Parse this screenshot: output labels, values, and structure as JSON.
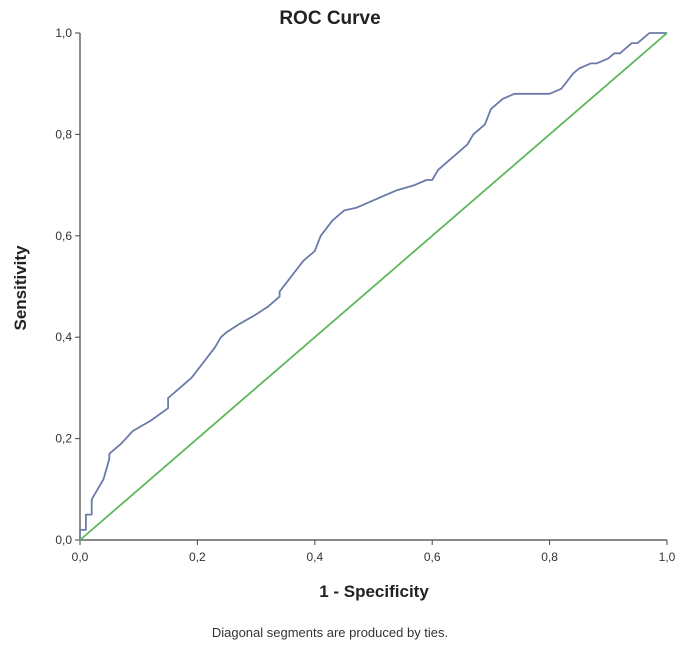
{
  "chart_data": {
    "type": "line",
    "title": "ROC Curve",
    "xlabel": "1 - Specificity",
    "ylabel": "Sensitivity",
    "footnote": "Diagonal segments are produced by ties.",
    "xlim": [
      0,
      1
    ],
    "ylim": [
      0,
      1
    ],
    "x_ticks": [
      "0,0",
      "0,2",
      "0,4",
      "0,6",
      "0,8",
      "1,0"
    ],
    "y_ticks": [
      "0,0",
      "0,2",
      "0,4",
      "0,6",
      "0,8",
      "1,0"
    ],
    "grid": false,
    "legend": "none",
    "colors": {
      "roc": "#6b7aa8",
      "reference": "#5cb85c",
      "axis": "#444444"
    },
    "series": [
      {
        "role": "roc",
        "x": [
          0.0,
          0.0,
          0.01,
          0.01,
          0.02,
          0.02,
          0.03,
          0.04,
          0.05,
          0.05,
          0.07,
          0.09,
          0.12,
          0.15,
          0.15,
          0.17,
          0.19,
          0.21,
          0.23,
          0.24,
          0.25,
          0.27,
          0.3,
          0.32,
          0.34,
          0.34,
          0.36,
          0.38,
          0.4,
          0.41,
          0.43,
          0.45,
          0.47,
          0.5,
          0.52,
          0.54,
          0.57,
          0.59,
          0.6,
          0.61,
          0.62,
          0.64,
          0.66,
          0.67,
          0.69,
          0.7,
          0.72,
          0.74,
          0.76,
          0.78,
          0.8,
          0.82,
          0.84,
          0.85,
          0.87,
          0.88,
          0.9,
          0.91,
          0.92,
          0.93,
          0.94,
          0.95,
          0.96,
          0.97,
          1.0
        ],
        "y": [
          0.0,
          0.02,
          0.02,
          0.05,
          0.05,
          0.08,
          0.1,
          0.12,
          0.16,
          0.17,
          0.19,
          0.215,
          0.235,
          0.26,
          0.28,
          0.3,
          0.32,
          0.35,
          0.38,
          0.4,
          0.41,
          0.425,
          0.445,
          0.46,
          0.48,
          0.49,
          0.52,
          0.55,
          0.57,
          0.6,
          0.63,
          0.65,
          0.655,
          0.67,
          0.68,
          0.69,
          0.7,
          0.71,
          0.71,
          0.73,
          0.74,
          0.76,
          0.78,
          0.8,
          0.82,
          0.85,
          0.87,
          0.88,
          0.88,
          0.88,
          0.88,
          0.89,
          0.92,
          0.93,
          0.94,
          0.94,
          0.95,
          0.96,
          0.96,
          0.97,
          0.98,
          0.98,
          0.99,
          1.0,
          1.0
        ]
      },
      {
        "role": "reference",
        "x": [
          0,
          1
        ],
        "y": [
          0,
          1
        ]
      }
    ]
  }
}
